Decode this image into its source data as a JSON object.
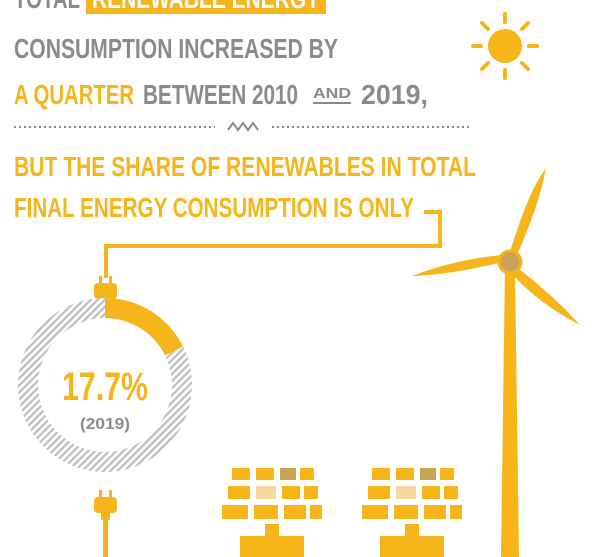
{
  "headline": {
    "line1": [
      "TOTAL",
      "RENEWABLE ENERGY"
    ],
    "line2": "CONSUMPTION INCREASED BY",
    "line3": [
      "A QUARTER",
      "BETWEEN 2010",
      "AND",
      "2019,"
    ]
  },
  "statement": {
    "line1": "BUT THE SHARE OF RENEWABLES IN TOTAL",
    "line2": "FINAL ENERGY CONSUMPTION IS ONLY"
  },
  "share": {
    "value": 17.7,
    "label": "17.7%",
    "year": "(2019)"
  }
}
